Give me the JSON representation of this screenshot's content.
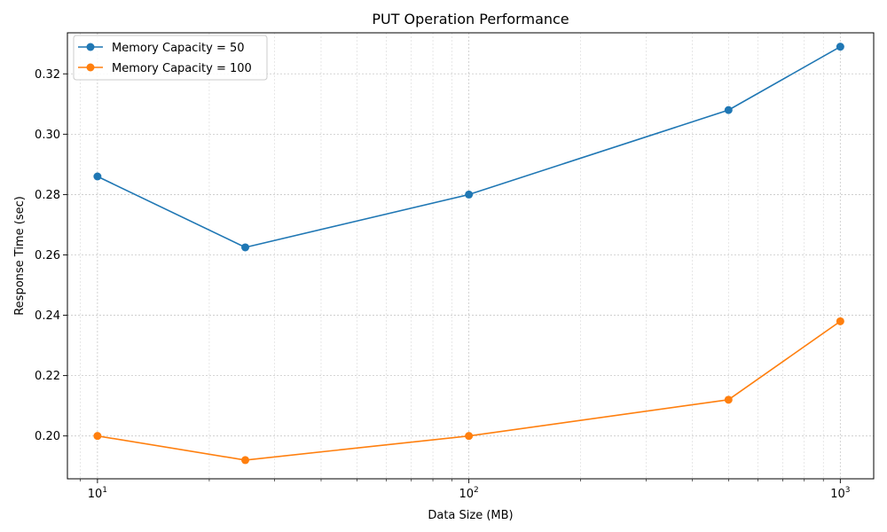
{
  "chart_data": {
    "type": "line",
    "title": "PUT Operation Performance",
    "xlabel": "Data Size (MB)",
    "ylabel": "Response Time (sec)",
    "xscale": "log",
    "xlim": [
      8.3,
      1230
    ],
    "ylim": [
      0.1858,
      0.3336
    ],
    "x": [
      10,
      25,
      100,
      500,
      1000
    ],
    "x_ticks": [
      {
        "value": 10,
        "base": "10",
        "exp": "1"
      },
      {
        "value": 100,
        "base": "10",
        "exp": "2"
      },
      {
        "value": 1000,
        "base": "10",
        "exp": "3"
      }
    ],
    "y_ticks": [
      {
        "value": 0.2,
        "label": "0.20"
      },
      {
        "value": 0.22,
        "label": "0.22"
      },
      {
        "value": 0.24,
        "label": "0.24"
      },
      {
        "value": 0.26,
        "label": "0.26"
      },
      {
        "value": 0.28,
        "label": "0.28"
      },
      {
        "value": 0.3,
        "label": "0.30"
      },
      {
        "value": 0.32,
        "label": "0.32"
      }
    ],
    "grid": true,
    "legend_position": "top-left",
    "series": [
      {
        "name": "Memory Capacity = 50",
        "color": "#1f77b4",
        "values": [
          0.286,
          0.2625,
          0.28,
          0.308,
          0.329
        ]
      },
      {
        "name": "Memory Capacity = 100",
        "color": "#ff7f0e",
        "values": [
          0.2,
          0.192,
          0.2,
          0.212,
          0.238
        ]
      }
    ]
  }
}
